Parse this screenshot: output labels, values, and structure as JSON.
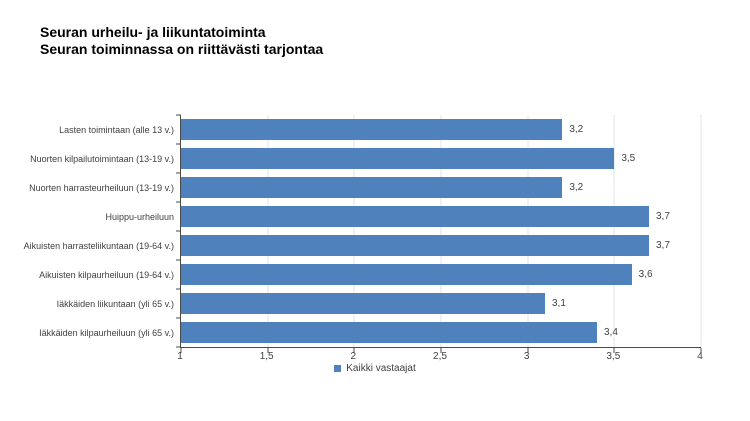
{
  "title": {
    "line1": "Seuran urheilu- ja liikuntatoiminta",
    "line2": "Seuran toiminnassa on riittävästi tarjontaa"
  },
  "chart_data": {
    "type": "bar",
    "orientation": "horizontal",
    "title": "Seuran urheilu- ja liikuntatoiminta",
    "subtitle": "Seuran toiminnassa on riittävästi tarjontaa",
    "categories": [
      "Lasten toimintaan (alle 13 v.)",
      "Nuorten kilpailutoimintaan (13-19 v.)",
      "Nuorten harrasteurheiluun (13-19 v.)",
      "Huippu-urheiluun",
      "Aikuisten harrasteliikuntaan (19-64 v.)",
      "Aikuisten kilpaurheiluun (19-64 v.)",
      "Iäkkäiden liikuntaan (yli 65 v.)",
      "Iäkkäiden kilpaurheiluun (yli 65 v.)"
    ],
    "series": [
      {
        "name": "Kaikki vastaajat",
        "values": [
          3.2,
          3.5,
          3.2,
          3.7,
          3.7,
          3.6,
          3.1,
          3.4
        ]
      }
    ],
    "value_labels": [
      "3,2",
      "3,5",
      "3,2",
      "3,7",
      "3,7",
      "3,6",
      "3,1",
      "3,4"
    ],
    "xlim": [
      1,
      4
    ],
    "x_ticks": [
      {
        "value": 1,
        "label": "1"
      },
      {
        "value": 1.5,
        "label": "1,5"
      },
      {
        "value": 2,
        "label": "2"
      },
      {
        "value": 2.5,
        "label": "2,5"
      },
      {
        "value": 3,
        "label": "3"
      },
      {
        "value": 3.5,
        "label": "3,5"
      },
      {
        "value": 4,
        "label": "4"
      }
    ],
    "grid": true,
    "legend": {
      "label": "Kaikki vastaajat",
      "position": "bottom-center"
    },
    "colors": {
      "bar": "#4f81bd",
      "axis": "#4a4a4a",
      "gridline": "#dde4ee",
      "text": "#404040"
    }
  }
}
